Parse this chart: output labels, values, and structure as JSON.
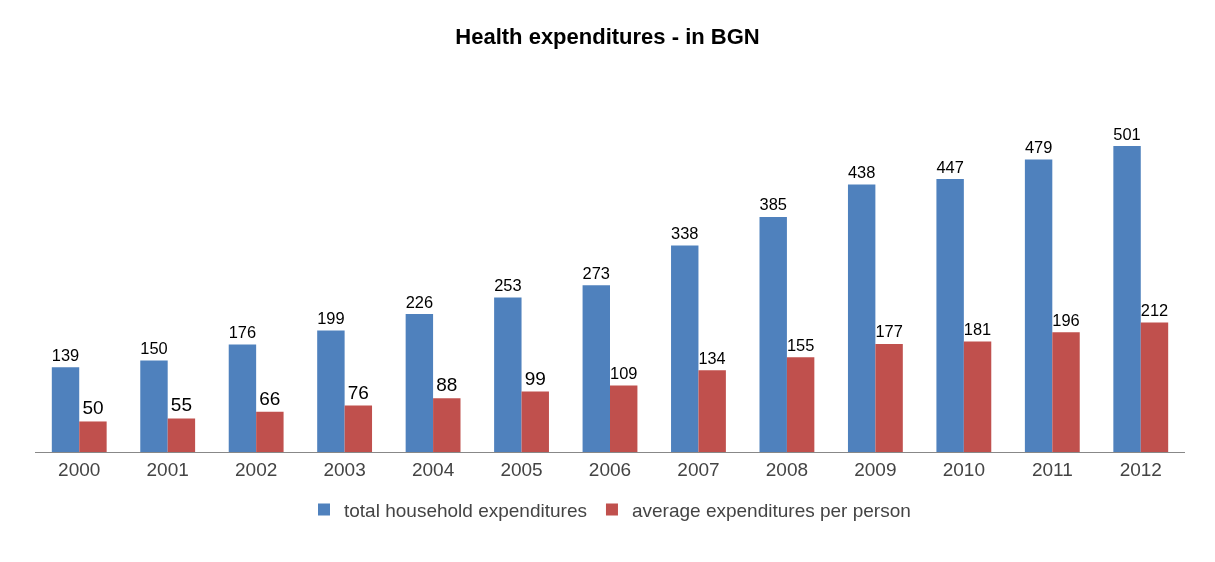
{
  "chart_data": {
    "type": "bar",
    "title": "Health expenditures - in BGN",
    "categories": [
      "2000",
      "2001",
      "2002",
      "2003",
      "2004",
      "2005",
      "2006",
      "2007",
      "2008",
      "2009",
      "2010",
      "2011",
      "2012"
    ],
    "series": [
      {
        "name": "total household expenditures",
        "color": "#4f81bd",
        "values": [
          139,
          150,
          176,
          199,
          226,
          253,
          273,
          338,
          385,
          438,
          447,
          479,
          501
        ]
      },
      {
        "name": "average expenditures per person",
        "color": "#c0504d",
        "values": [
          50,
          55,
          66,
          76,
          88,
          99,
          109,
          134,
          155,
          177,
          181,
          196,
          212
        ]
      }
    ],
    "data_labels": true,
    "legend": "bottom",
    "grid": false,
    "tick_labels": "x"
  }
}
